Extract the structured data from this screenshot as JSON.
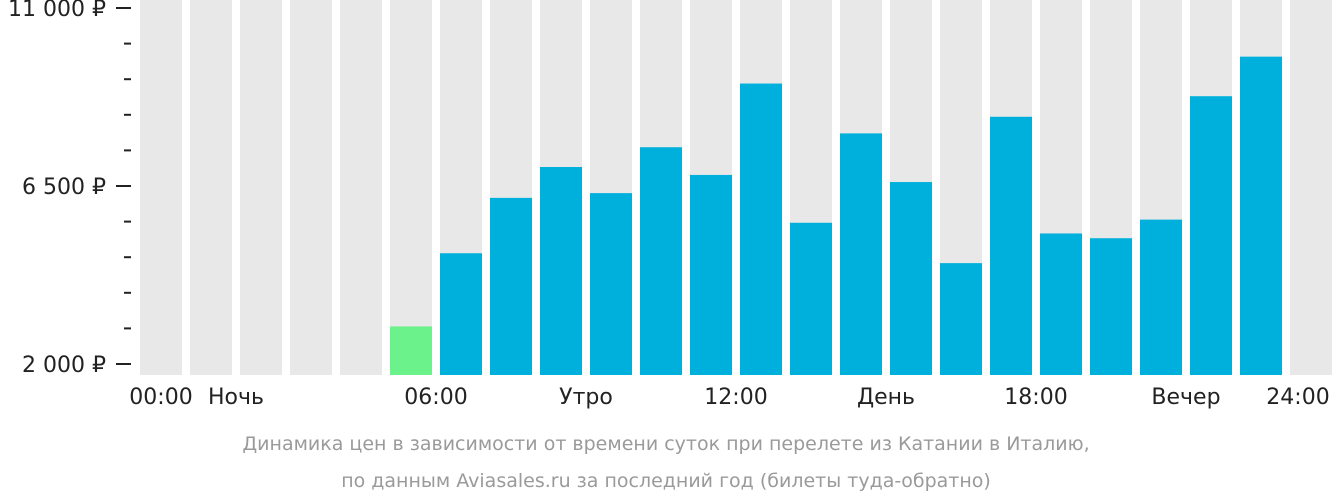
{
  "chart_data": {
    "type": "bar",
    "caption": [
      "Динамика цен в зависимости от времени суток при перелете из Катании в Италию,",
      "по данным Aviasales.ru за последний год (билеты туда-обратно)"
    ],
    "y_ticks": [
      {
        "value": 2000,
        "label": "2 000 ₽"
      },
      {
        "value": 6500,
        "label": "6 500 ₽"
      },
      {
        "value": 11000,
        "label": "11 000 ₽"
      }
    ],
    "ylim": [
      2000,
      11000
    ],
    "x_labels": [
      {
        "slot": 0,
        "label": "00:00"
      },
      {
        "slot": 2,
        "label": "Ночь"
      },
      {
        "slot": 6,
        "label": "06:00"
      },
      {
        "slot": 9,
        "label": "Утро"
      },
      {
        "slot": 12,
        "label": "12:00"
      },
      {
        "slot": 15,
        "label": "День"
      },
      {
        "slot": 18,
        "label": "18:00"
      },
      {
        "slot": 21,
        "label": "Вечер"
      },
      {
        "slot": 24,
        "label": "24:00"
      }
    ],
    "bars": [
      {
        "hour": 0,
        "value": null
      },
      {
        "hour": 1,
        "value": null
      },
      {
        "hour": 2,
        "value": null
      },
      {
        "hour": 3,
        "value": null
      },
      {
        "hour": 4,
        "value": null
      },
      {
        "hour": 5,
        "value": 2950,
        "highlight": true
      },
      {
        "hour": 6,
        "value": 4800
      },
      {
        "hour": 7,
        "value": 6200
      },
      {
        "hour": 8,
        "value": 6980
      },
      {
        "hour": 9,
        "value": 6320
      },
      {
        "hour": 10,
        "value": 7480
      },
      {
        "hour": 11,
        "value": 6780
      },
      {
        "hour": 12,
        "value": 9090
      },
      {
        "hour": 13,
        "value": 5570
      },
      {
        "hour": 14,
        "value": 7830
      },
      {
        "hour": 15,
        "value": 6600
      },
      {
        "hour": 16,
        "value": 4550
      },
      {
        "hour": 17,
        "value": 8250
      },
      {
        "hour": 18,
        "value": 5300
      },
      {
        "hour": 19,
        "value": 5180
      },
      {
        "hour": 20,
        "value": 5650
      },
      {
        "hour": 21,
        "value": 8770
      },
      {
        "hour": 22,
        "value": 9770
      },
      {
        "hour": 23,
        "value": null
      }
    ],
    "colors": {
      "bar": "#00b0dc",
      "highlight": "#6cf28a",
      "background_bar": "#e8e8e8",
      "axis": "#222222"
    }
  }
}
